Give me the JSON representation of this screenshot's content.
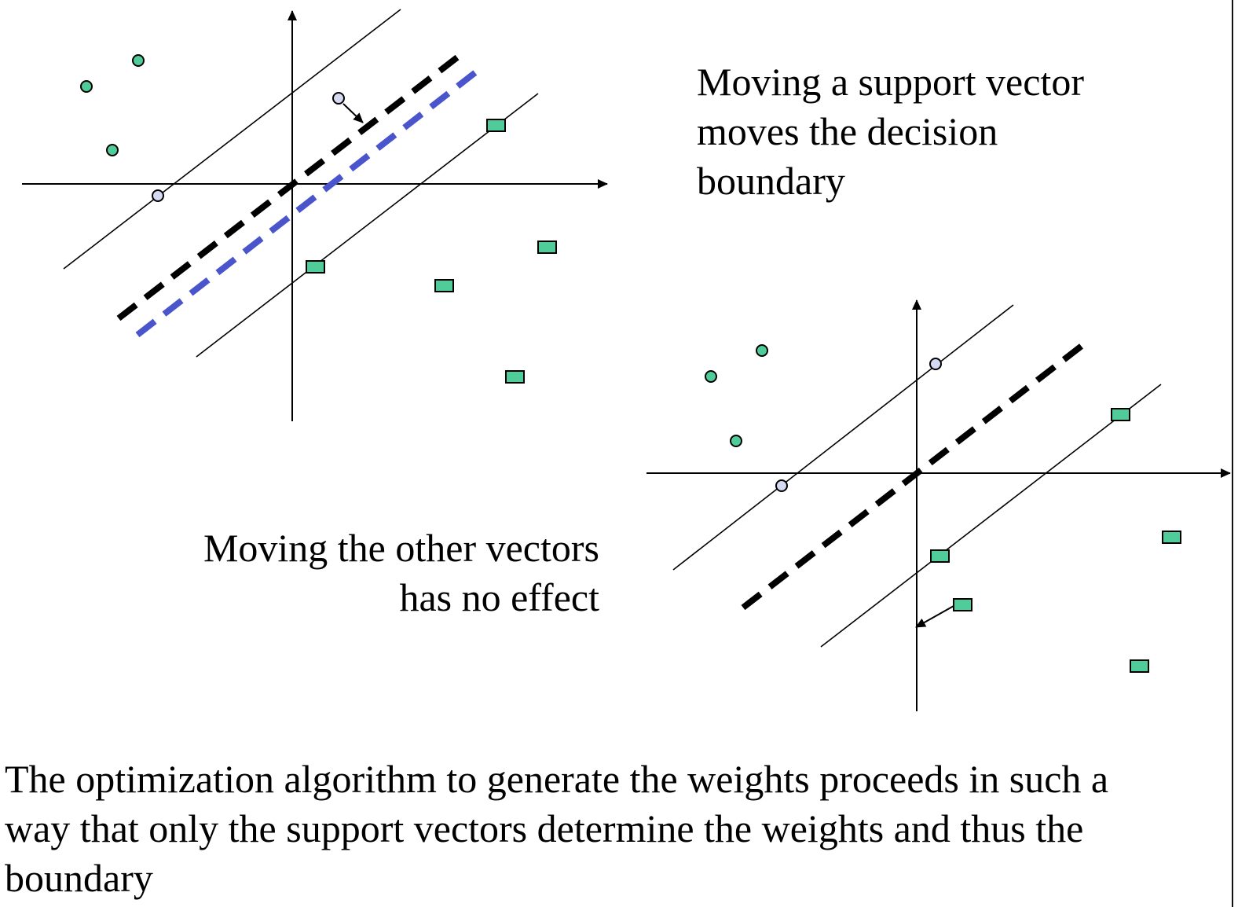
{
  "notes": {
    "support_vector_moved": {
      "lines": [
        "Moving a support vector",
        "moves the decision",
        "boundary"
      ]
    },
    "other_vectors_moved": {
      "lines": [
        "Moving the other vectors",
        "has no effect"
      ]
    }
  },
  "caption": {
    "lines": [
      "The optimization algorithm to generate the weights proceeds in such a",
      "way that only the support vectors determine the weights and thus the",
      "boundary"
    ]
  },
  "colors": {
    "point_fill": "#4fcc99",
    "support_vector_fill": "#d6d9f2",
    "original_boundary": "#000000",
    "moved_boundary": "#4a55cc",
    "stroke": "#000000"
  }
}
